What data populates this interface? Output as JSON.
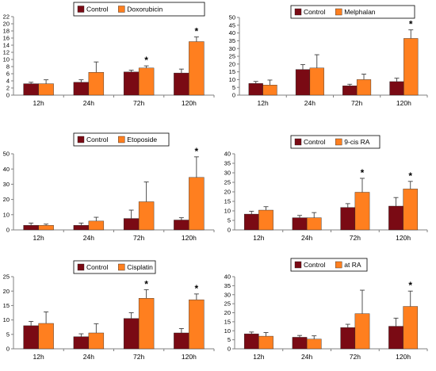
{
  "colors": {
    "control": "#7a0a14",
    "treated": "#ff7f1f",
    "axis": "#808080",
    "errorbar": "#404040"
  },
  "chart_data": [
    {
      "type": "bar",
      "categories": [
        "12h",
        "24h",
        "72h",
        "120h"
      ],
      "ylim": [
        0,
        22
      ],
      "yticks": [
        "0",
        "2",
        "4",
        "6",
        "8",
        "10",
        "12",
        "14",
        "16",
        "18",
        "20",
        "22"
      ],
      "legend_position": "top",
      "series": [
        {
          "name": "Control",
          "values": [
            3.2,
            3.6,
            6.5,
            6.2
          ],
          "errors": [
            0.4,
            0.7,
            0.5,
            1.1
          ]
        },
        {
          "name": "Doxorubicin",
          "values": [
            3.2,
            6.4,
            7.6,
            15.0
          ],
          "errors": [
            1.1,
            2.9,
            0.6,
            1.3
          ]
        }
      ],
      "annotations": [
        "",
        "",
        "*",
        "*"
      ]
    },
    {
      "type": "bar",
      "categories": [
        "12h",
        "24h",
        "72h",
        "120h"
      ],
      "ylim": [
        0,
        50
      ],
      "yticks": [
        "0",
        "5",
        "10",
        "15",
        "20",
        "25",
        "30",
        "35",
        "40",
        "45",
        "50"
      ],
      "legend_position": "top",
      "series": [
        {
          "name": "Control",
          "values": [
            7.5,
            16.5,
            6.0,
            8.7
          ],
          "errors": [
            1.3,
            3.2,
            1.0,
            2.2
          ]
        },
        {
          "name": "Melphalan",
          "values": [
            6.5,
            17.5,
            10.0,
            36.5
          ],
          "errors": [
            3.2,
            8.5,
            3.5,
            5.5
          ]
        }
      ],
      "annotations": [
        "",
        "",
        "",
        "*"
      ]
    },
    {
      "type": "bar",
      "categories": [
        "12h",
        "24h",
        "72h",
        "120h"
      ],
      "ylim": [
        0,
        50
      ],
      "yticks": [
        "0",
        "10",
        "20",
        "30",
        "40",
        "50"
      ],
      "legend_position": "top",
      "series": [
        {
          "name": "Control",
          "values": [
            3.0,
            3.0,
            7.5,
            6.5
          ],
          "errors": [
            1.5,
            1.5,
            5.5,
            1.5
          ]
        },
        {
          "name": "Etoposide",
          "values": [
            3.0,
            5.8,
            18.5,
            34.5
          ],
          "errors": [
            0.8,
            2.5,
            13.0,
            13.5
          ]
        }
      ],
      "annotations": [
        "",
        "",
        "",
        "*"
      ]
    },
    {
      "type": "bar",
      "categories": [
        "12h",
        "24h",
        "72h",
        "120h"
      ],
      "ylim": [
        0,
        40
      ],
      "yticks": [
        "0",
        "5",
        "10",
        "15",
        "20",
        "25",
        "30",
        "35",
        "40"
      ],
      "legend_position": "top",
      "series": [
        {
          "name": "Control",
          "values": [
            8.3,
            6.4,
            11.8,
            12.5
          ],
          "errors": [
            1.5,
            1.2,
            2.0,
            4.5
          ]
        },
        {
          "name": "9-cis RA",
          "values": [
            10.4,
            6.4,
            19.8,
            21.5
          ],
          "errors": [
            1.8,
            2.7,
            7.3,
            4.0
          ]
        }
      ],
      "annotations": [
        "",
        "",
        "*",
        "*"
      ]
    },
    {
      "type": "bar",
      "categories": [
        "12h",
        "24h",
        "72h",
        "120h"
      ],
      "ylim": [
        0,
        25
      ],
      "yticks": [
        "0",
        "5",
        "10",
        "15",
        "20",
        "25"
      ],
      "legend_position": "top",
      "series": [
        {
          "name": "Control",
          "values": [
            8.0,
            4.2,
            10.5,
            5.5
          ],
          "errors": [
            1.5,
            1.0,
            2.0,
            1.5
          ]
        },
        {
          "name": "Cisplatin",
          "values": [
            8.8,
            5.5,
            17.5,
            17.0
          ],
          "errors": [
            4.0,
            3.2,
            3.0,
            2.0
          ]
        }
      ],
      "annotations": [
        "",
        "",
        "*",
        "*"
      ]
    },
    {
      "type": "bar",
      "categories": [
        "12h",
        "24h",
        "72h",
        "120h"
      ],
      "ylim": [
        0,
        40
      ],
      "yticks": [
        "0",
        "5",
        "10",
        "15",
        "20",
        "25",
        "30",
        "35",
        "40"
      ],
      "legend_position": "top",
      "series": [
        {
          "name": "Control",
          "values": [
            8.3,
            6.4,
            11.8,
            12.5
          ],
          "errors": [
            1.0,
            1.0,
            1.8,
            4.5
          ]
        },
        {
          "name": "at RA",
          "values": [
            7.0,
            5.4,
            19.5,
            23.5
          ],
          "errors": [
            2.0,
            1.8,
            13.0,
            8.5
          ]
        }
      ],
      "annotations": [
        "",
        "",
        "",
        "*"
      ]
    }
  ]
}
